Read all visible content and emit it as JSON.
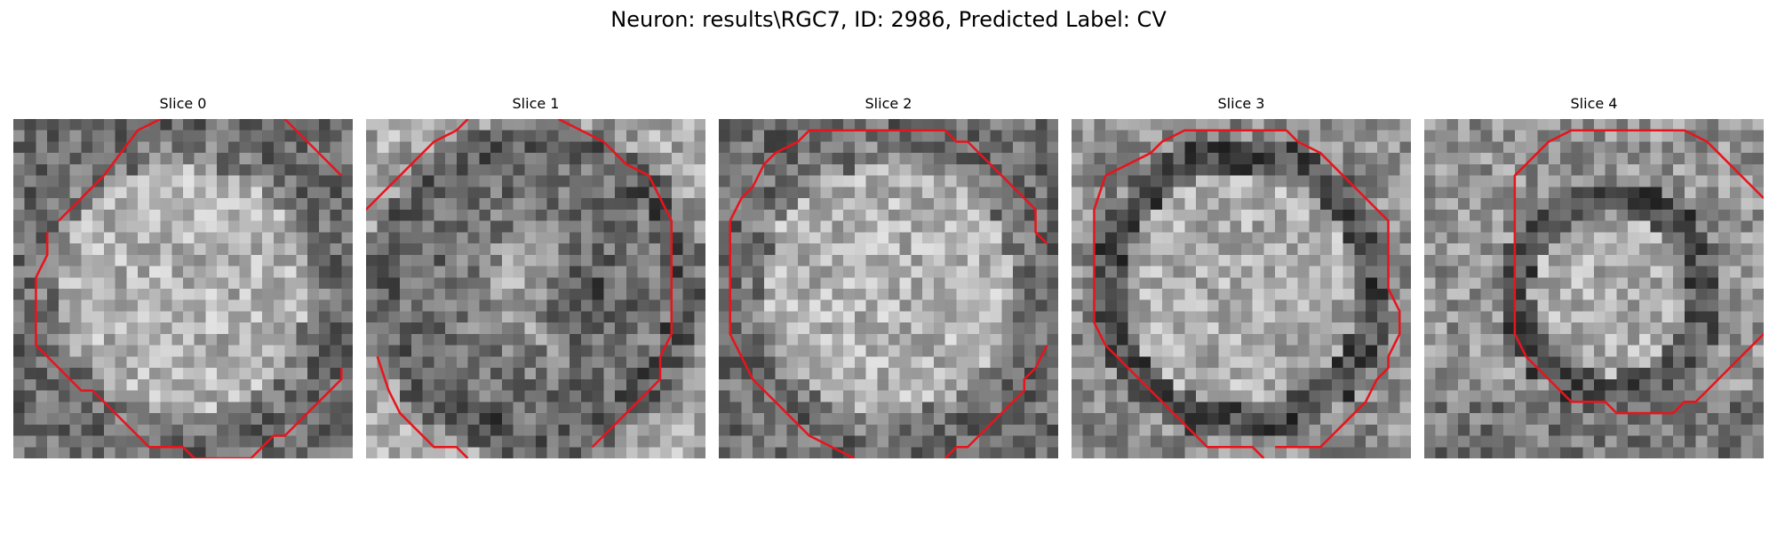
{
  "figure": {
    "suptitle": "Neuron: results\\RGC7, ID: 2986, Predicted Label: CV"
  },
  "panels": [
    {
      "title": "Slice 0",
      "pattern": "bright-disk"
    },
    {
      "title": "Slice 1",
      "pattern": "dark-core"
    },
    {
      "title": "Slice 2",
      "pattern": "bright-disk"
    },
    {
      "title": "Slice 3",
      "pattern": "dark-ring"
    },
    {
      "title": "Slice 4",
      "pattern": "ring-offset"
    }
  ],
  "colors": {
    "contour": "#e8141c",
    "background": "#ffffff"
  }
}
